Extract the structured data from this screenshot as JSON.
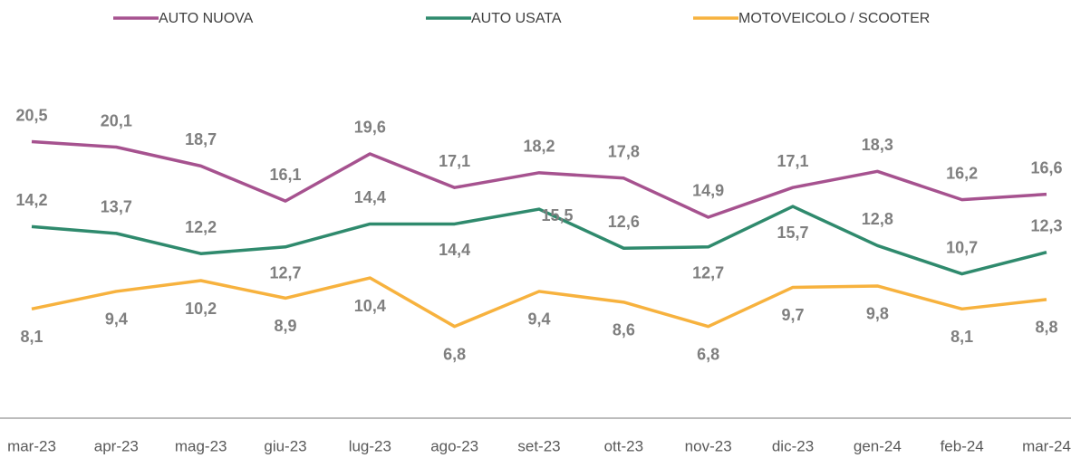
{
  "chart_data": {
    "type": "line",
    "categories": [
      "mar-23",
      "apr-23",
      "mag-23",
      "giu-23",
      "lug-23",
      "ago-23",
      "set-23",
      "ott-23",
      "nov-23",
      "dic-23",
      "gen-24",
      "feb-24",
      "mar-24"
    ],
    "series": [
      {
        "name": "AUTO NUOVA",
        "color": "#a6528f",
        "values": [
          20.5,
          20.1,
          18.7,
          16.1,
          19.6,
          17.1,
          18.2,
          17.8,
          14.9,
          17.1,
          18.3,
          16.2,
          16.6
        ],
        "value_labels": [
          "20,5",
          "20,1",
          "18,7",
          "16,1",
          "19,6",
          "17,1",
          "18,2",
          "17,8",
          "14,9",
          "17,1",
          "18,3",
          "16,2",
          "16,6"
        ]
      },
      {
        "name": "AUTO USATA",
        "color": "#2f8a6d",
        "values": [
          14.2,
          13.7,
          12.2,
          12.7,
          14.4,
          14.4,
          15.5,
          12.6,
          12.7,
          15.7,
          12.8,
          10.7,
          12.3
        ],
        "value_labels": [
          "14,2",
          "13,7",
          "12,2",
          "12,7",
          "14,4",
          "14,4",
          "15,5",
          "12,6",
          "12,7",
          "15,7",
          "12,8",
          "10,7",
          "12,3"
        ]
      },
      {
        "name": "MOTOVEICOLO / SCOOTER",
        "color": "#f7b23e",
        "values": [
          8.1,
          9.4,
          10.2,
          8.9,
          10.4,
          6.8,
          9.4,
          8.6,
          6.8,
          9.7,
          9.8,
          8.1,
          8.8
        ],
        "value_labels": [
          "8,1",
          "9,4",
          "10,2",
          "8,9",
          "10,4",
          "6,8",
          "9,4",
          "8,6",
          "6,8",
          "9,7",
          "9,8",
          "8,1",
          "8,8"
        ]
      }
    ],
    "ylim": [
      0,
      25
    ],
    "legend": "top",
    "grid": false
  }
}
